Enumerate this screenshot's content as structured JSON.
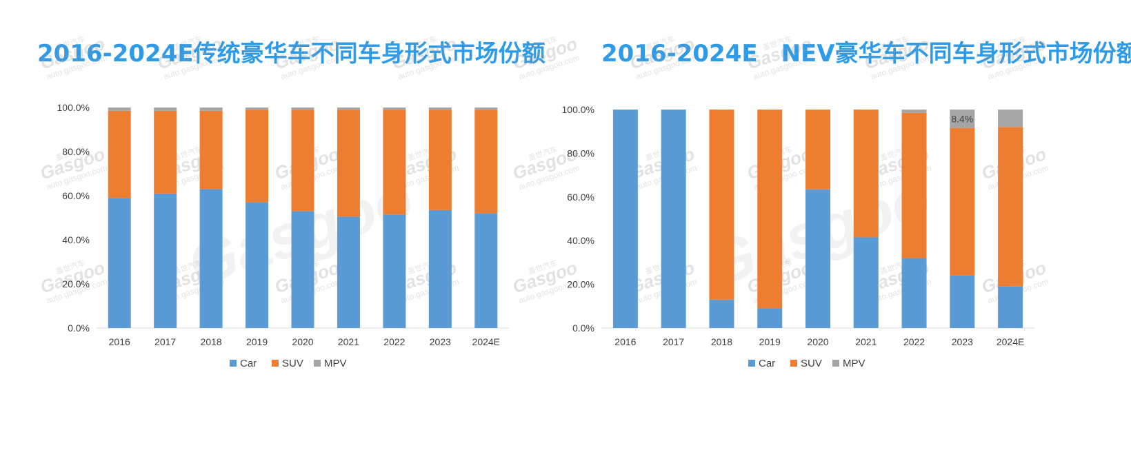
{
  "legend_colors": {
    "Car": "#5B9BD5",
    "SUV": "#ED7D31",
    "MPV": "#A5A5A5"
  },
  "watermark": {
    "brand": "Gasgoo",
    "cn": "盖世汽车",
    "url": "auto.gasgoo.com"
  },
  "chart_data": [
    {
      "type": "bar",
      "stacked": true,
      "title": "2016-2024E传统豪华车不同车身形式市场份额",
      "categories": [
        "2016",
        "2017",
        "2018",
        "2019",
        "2020",
        "2021",
        "2022",
        "2023",
        "2024E"
      ],
      "yticks": [
        "0.0%",
        "20.0%",
        "40.0%",
        "60.0%",
        "80.0%",
        "100.0%"
      ],
      "ylim": [
        0,
        100
      ],
      "legend": "bottom",
      "grid": false,
      "series": [
        {
          "name": "Car",
          "values": [
            59,
            61,
            63,
            57,
            53,
            50.5,
            51.5,
            53.5,
            52
          ]
        },
        {
          "name": "SUV",
          "values": [
            39.5,
            37.5,
            35.5,
            42,
            46,
            48.5,
            47.5,
            45.5,
            47
          ]
        },
        {
          "name": "MPV",
          "values": [
            1.5,
            1.5,
            1.5,
            1,
            1,
            1,
            1,
            1,
            1
          ]
        }
      ],
      "data_labels": []
    },
    {
      "type": "bar",
      "stacked": true,
      "title": "2016-2024E　NEV豪华车不同车身形式市场份额",
      "categories": [
        "2016",
        "2017",
        "2018",
        "2019",
        "2020",
        "2021",
        "2022",
        "2023",
        "2024E"
      ],
      "yticks": [
        "0.0%",
        "20.0%",
        "40.0%",
        "60.0%",
        "80.0%",
        "100.0%"
      ],
      "ylim": [
        0,
        100
      ],
      "legend": "bottom",
      "grid": false,
      "series": [
        {
          "name": "Car",
          "values": [
            100,
            100,
            13,
            9,
            63.5,
            41.5,
            32,
            24,
            19
          ]
        },
        {
          "name": "SUV",
          "values": [
            0,
            0,
            87,
            91,
            36.5,
            58.5,
            66.5,
            67.6,
            73
          ]
        },
        {
          "name": "MPV",
          "values": [
            0,
            0,
            0,
            0,
            0,
            0,
            1.5,
            8.4,
            8
          ]
        }
      ],
      "data_labels": [
        {
          "category": "2023",
          "series": "MPV",
          "text": "8.4%"
        }
      ]
    }
  ]
}
